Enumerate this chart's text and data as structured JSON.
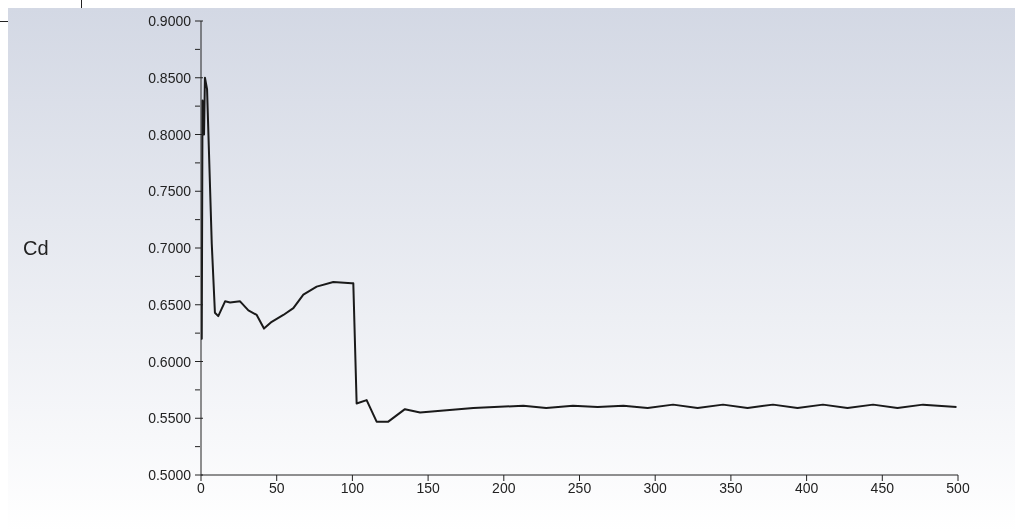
{
  "chart_data": {
    "type": "line",
    "ylabel": "Cd",
    "x": [
      0,
      0.5,
      1,
      2,
      2.6,
      4,
      7.1,
      9.2,
      11.4,
      15.9,
      19.2,
      25.8,
      31.3,
      36.8,
      41.6,
      46.7,
      54.4,
      61,
      67.6,
      76.4,
      87.4,
      99.5,
      100.6,
      102.8,
      109.4,
      116,
      123.7,
      134.7,
      144.7,
      179.9,
      212.9,
      228,
      245.7,
      262,
      279,
      295,
      311.8,
      328,
      344.8,
      361,
      377.8,
      394,
      410.8,
      427,
      443.9,
      460,
      476.9,
      499
    ],
    "series": [
      {
        "color": "#1a1a1a",
        "values": [
          0.62,
          0.62,
          0.83,
          0.8,
          0.85,
          0.84,
          0.704,
          0.643,
          0.64,
          0.653,
          0.652,
          0.653,
          0.645,
          0.641,
          0.629,
          0.635,
          0.641,
          0.647,
          0.659,
          0.666,
          0.67,
          0.669,
          0.669,
          0.563,
          0.566,
          0.547,
          0.547,
          0.558,
          0.555,
          0.559,
          0.561,
          0.559,
          0.561,
          0.56,
          0.561,
          0.559,
          0.562,
          0.559,
          0.562,
          0.559,
          0.562,
          0.559,
          0.562,
          0.559,
          0.562,
          0.559,
          0.562,
          0.56
        ]
      }
    ],
    "xlim": [
      0,
      500
    ],
    "xticks": [
      0,
      50,
      100,
      150,
      200,
      250,
      300,
      350,
      400,
      450,
      500
    ],
    "ylim": [
      0.5,
      0.9
    ],
    "yticks": [
      {
        "value": 0.5,
        "label": "0.5000"
      },
      {
        "value": 0.525,
        "label": null
      },
      {
        "value": 0.55,
        "label": "0.5500"
      },
      {
        "value": 0.575,
        "label": null
      },
      {
        "value": 0.6,
        "label": "0.6000"
      },
      {
        "value": 0.625,
        "label": null
      },
      {
        "value": 0.65,
        "label": "0.6500"
      },
      {
        "value": 0.675,
        "label": null
      },
      {
        "value": 0.7,
        "label": "0.7000"
      },
      {
        "value": 0.725,
        "label": null
      },
      {
        "value": 0.75,
        "label": "0.7500"
      },
      {
        "value": 0.775,
        "label": null
      },
      {
        "value": 0.8,
        "label": "0.8000"
      },
      {
        "value": 0.825,
        "label": null
      },
      {
        "value": 0.85,
        "label": "0.8500"
      },
      {
        "value": 0.875,
        "label": null
      },
      {
        "value": 0.9,
        "label": "0.9000"
      }
    ],
    "grid": false,
    "legend": false,
    "marker": "none",
    "line_style": "solid"
  }
}
